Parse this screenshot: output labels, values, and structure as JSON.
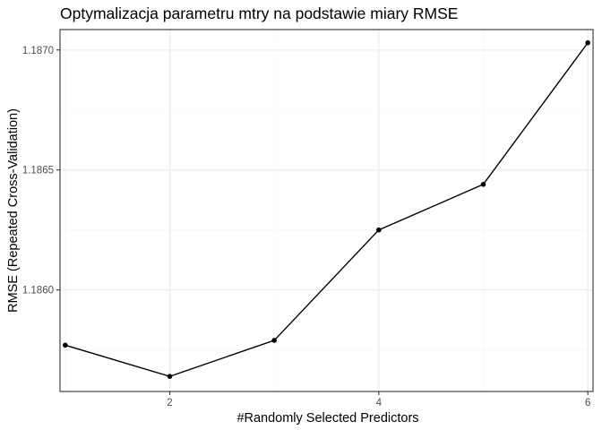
{
  "chart_data": {
    "type": "line",
    "title": "Optymalizacja parametru mtry na podstawie miary RMSE",
    "xlabel": "#Randomly Selected Predictors",
    "ylabel": "RMSE (Repeated Cross-Validation)",
    "x": [
      1,
      2,
      3,
      4,
      5,
      6
    ],
    "values": [
      1.18577,
      1.18564,
      1.18579,
      1.18625,
      1.18644,
      1.18703
    ],
    "xlim": [
      0.95,
      6.05
    ],
    "ylim": [
      1.185577,
      1.187085
    ],
    "xticks": [
      2,
      4,
      6
    ],
    "xtick_labels": [
      "2",
      "4",
      "6"
    ],
    "yticks": [
      1.186,
      1.1865,
      1.187
    ],
    "ytick_labels": [
      "1.1860",
      "1.1865",
      "1.1870"
    ],
    "grid": true,
    "colors": {
      "line": "#000000",
      "grid": "#ebebeb",
      "background": "#ffffff"
    }
  }
}
